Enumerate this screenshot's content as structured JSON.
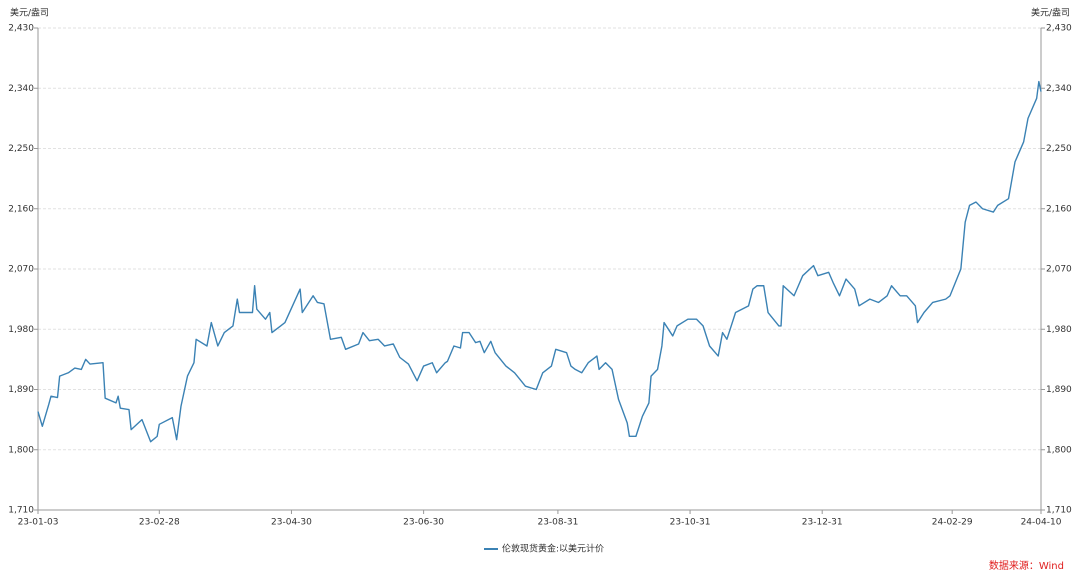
{
  "chart_data": {
    "type": "line",
    "y_label": "美元/盎司",
    "y2_label": "美元/盎司",
    "source": "数据来源：Wind",
    "x": [
      "23-01-03",
      "23-01-05",
      "23-01-08",
      "23-01-09",
      "23-01-12",
      "23-01-13",
      "23-01-17",
      "23-01-20",
      "23-01-23",
      "23-01-25",
      "23-01-27",
      "23-02-02",
      "23-02-03",
      "23-02-08",
      "23-02-09",
      "23-02-10",
      "23-02-14",
      "23-02-15",
      "23-02-20",
      "23-02-24",
      "23-02-27",
      "23-02-28",
      "23-03-06",
      "23-03-08",
      "23-03-10",
      "23-03-13",
      "23-03-16",
      "23-03-17",
      "23-03-22",
      "23-03-24",
      "23-03-27",
      "23-03-30",
      "23-04-03",
      "23-04-05",
      "23-04-06",
      "23-04-12",
      "23-04-13",
      "23-04-14",
      "23-04-18",
      "23-04-20",
      "23-04-21",
      "23-04-25",
      "23-04-27",
      "23-05-04",
      "23-05-05",
      "23-05-10",
      "23-05-12",
      "23-05-15",
      "23-05-18",
      "23-05-23",
      "23-05-25",
      "23-05-31",
      "23-06-02",
      "23-06-05",
      "23-06-09",
      "23-06-12",
      "23-06-16",
      "23-06-19",
      "23-06-23",
      "23-06-27",
      "23-06-30",
      "23-07-04",
      "23-07-06",
      "23-07-10",
      "23-07-11",
      "23-07-14",
      "23-07-17",
      "23-07-18",
      "23-07-21",
      "23-07-24",
      "23-07-26",
      "23-07-28",
      "23-07-31",
      "23-08-02",
      "23-08-07",
      "23-08-11",
      "23-08-16",
      "23-08-21",
      "23-08-24",
      "23-08-28",
      "23-08-30",
      "23-09-04",
      "23-09-06",
      "23-09-08",
      "23-09-11",
      "23-09-14",
      "23-09-18",
      "23-09-19",
      "23-09-22",
      "23-09-25",
      "23-09-28",
      "23-10-02",
      "23-10-03",
      "23-10-06",
      "23-10-09",
      "23-10-12",
      "23-10-13",
      "23-10-16",
      "23-10-18",
      "23-10-19",
      "23-10-23",
      "23-10-25",
      "23-10-30",
      "23-11-03",
      "23-11-06",
      "23-11-09",
      "23-11-13",
      "23-11-15",
      "23-11-17",
      "23-11-21",
      "23-11-27",
      "23-11-29",
      "23-12-01",
      "23-12-04",
      "23-12-06",
      "23-12-11",
      "23-12-12",
      "23-12-13",
      "23-12-18",
      "23-12-20",
      "23-12-22",
      "23-12-27",
      "23-12-29",
      "24-01-03",
      "24-01-05",
      "24-01-08",
      "24-01-11",
      "24-01-15",
      "24-01-17",
      "24-01-22",
      "24-01-26",
      "24-01-30",
      "24-02-01",
      "24-02-05",
      "24-02-08",
      "24-02-12",
      "24-02-13",
      "24-02-16",
      "24-02-20",
      "24-02-26",
      "24-02-28",
      "24-03-04",
      "24-03-05",
      "24-03-06",
      "24-03-08",
      "24-03-11",
      "24-03-14",
      "24-03-19",
      "24-03-21",
      "24-03-26",
      "24-03-29",
      "24-04-02",
      "24-04-04",
      "24-04-08",
      "24-04-09",
      "24-04-10"
    ],
    "series": [
      {
        "name": "伦敦现货黄金:以美元计价",
        "color": "#3b82b4",
        "values": [
          1857,
          1835,
          1868,
          1880,
          1878,
          1910,
          1915,
          1922,
          1920,
          1935,
          1928,
          1930,
          1877,
          1870,
          1880,
          1862,
          1860,
          1830,
          1845,
          1812,
          1820,
          1838,
          1848,
          1815,
          1865,
          1910,
          1930,
          1965,
          1955,
          1990,
          1955,
          1975,
          1985,
          2025,
          2005,
          2005,
          2045,
          2010,
          1995,
          2005,
          1975,
          1985,
          1990,
          2040,
          2005,
          2030,
          2020,
          2018,
          1965,
          1968,
          1950,
          1958,
          1975,
          1963,
          1965,
          1955,
          1958,
          1938,
          1928,
          1903,
          1925,
          1930,
          1915,
          1930,
          1932,
          1955,
          1952,
          1975,
          1975,
          1960,
          1962,
          1945,
          1962,
          1945,
          1925,
          1915,
          1895,
          1890,
          1915,
          1925,
          1950,
          1945,
          1925,
          1920,
          1915,
          1930,
          1940,
          1920,
          1930,
          1920,
          1875,
          1840,
          1820,
          1820,
          1850,
          1870,
          1910,
          1920,
          1955,
          1990,
          1970,
          1985,
          1995,
          1995,
          1985,
          1955,
          1940,
          1975,
          1965,
          2005,
          2015,
          2040,
          2045,
          2045,
          2005,
          1985,
          1985,
          2045,
          2030,
          2045,
          2060,
          2075,
          2060,
          2065,
          2050,
          2030,
          2055,
          2040,
          2015,
          2025,
          2020,
          2030,
          2045,
          2030,
          2030,
          2015,
          1990,
          2005,
          2020,
          2025,
          2030,
          2070,
          2105,
          2140,
          2165,
          2170,
          2160,
          2155,
          2165,
          2175,
          2230,
          2260,
          2295,
          2325,
          2350,
          2335
        ]
      }
    ],
    "xlim": [
      "23-01-03",
      "24-04-10"
    ],
    "xticks": [
      "23-01-03",
      "23-02-28",
      "23-04-30",
      "23-06-30",
      "23-08-31",
      "23-10-31",
      "23-12-31",
      "24-02-29",
      "24-04-10"
    ],
    "ylim": [
      1710,
      2430
    ],
    "yticks": [
      {
        "value": 1710,
        "label": "1,710"
      },
      {
        "value": 1800,
        "label": "1,800"
      },
      {
        "value": 1890,
        "label": "1,890"
      },
      {
        "value": 1980,
        "label": "1,980"
      },
      {
        "value": 2070,
        "label": "2,070"
      },
      {
        "value": 2160,
        "label": "2,160"
      },
      {
        "value": 2250,
        "label": "2,250"
      },
      {
        "value": 2340,
        "label": "2,340"
      },
      {
        "value": 2430,
        "label": "2,430"
      }
    ],
    "y2lim": [
      1710,
      2430
    ],
    "y2ticks": [
      {
        "value": 1710,
        "label": "1,710"
      },
      {
        "value": 1800,
        "label": "1,800"
      },
      {
        "value": 1890,
        "label": "1,890"
      },
      {
        "value": 1980,
        "label": "1,980"
      },
      {
        "value": 2070,
        "label": "2,070"
      },
      {
        "value": 2160,
        "label": "2,160"
      },
      {
        "value": 2250,
        "label": "2,250"
      },
      {
        "value": 2340,
        "label": "2,340"
      },
      {
        "value": 2430,
        "label": "2,430"
      }
    ],
    "grid": true,
    "legend": "bottom"
  }
}
